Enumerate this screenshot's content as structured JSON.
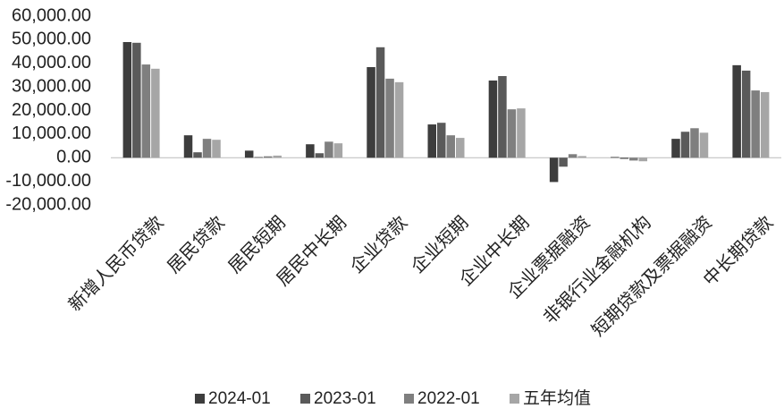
{
  "chart_data": {
    "type": "bar",
    "categories": [
      "新增人民币贷款",
      "居民贷款",
      "居民短期",
      "居民中长期",
      "企业贷款",
      "企业短期",
      "企业中长期",
      "企业票据融资",
      "非银行业金融机构",
      "短期贷款及票据融资",
      "中长期贷款"
    ],
    "series": [
      {
        "name": "2024-01",
        "color": "#3d3d3d",
        "values": [
          49000,
          9500,
          3000,
          5700,
          38400,
          14100,
          32700,
          -10300,
          300,
          8000,
          39200
        ]
      },
      {
        "name": "2023-01",
        "color": "#5a5a5a",
        "values": [
          48700,
          2300,
          300,
          1900,
          46800,
          14800,
          34600,
          -3800,
          -500,
          11000,
          36900
        ]
      },
      {
        "name": "2022-01",
        "color": "#7f7f7f",
        "values": [
          39500,
          8000,
          600,
          6800,
          33500,
          9500,
          20500,
          1500,
          -1200,
          12500,
          28500
        ]
      },
      {
        "name": "五年均值",
        "color": "#a6a6a6",
        "values": [
          37700,
          7600,
          900,
          6100,
          32000,
          8400,
          20900,
          700,
          -1500,
          10600,
          27800
        ]
      }
    ],
    "ylim": [
      -20000,
      60000
    ],
    "yticks": [
      {
        "value": -20000,
        "label": "-20,000.00"
      },
      {
        "value": -10000,
        "label": "-10,000.00"
      },
      {
        "value": 0,
        "label": "0.00"
      },
      {
        "value": 10000,
        "label": "10,000.00"
      },
      {
        "value": 20000,
        "label": "20,000.00"
      },
      {
        "value": 30000,
        "label": "30,000.00"
      },
      {
        "value": 40000,
        "label": "40,000.00"
      },
      {
        "value": 50000,
        "label": "50,000.00"
      },
      {
        "value": 60000,
        "label": "60,000.00"
      }
    ],
    "grid": false,
    "legend": "bottom"
  }
}
